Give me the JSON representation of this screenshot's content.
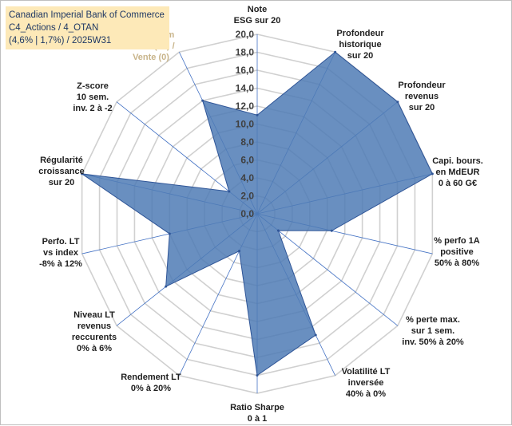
{
  "title_box": {
    "line1": "Canadian Imperial Bank of Commerce",
    "line2": "C4_Actions / 4_OTAN",
    "line3": "(4,6% | 1,7%) / 2025W31"
  },
  "colors": {
    "fill": "#4f7bb5",
    "stroke": "#2f5597",
    "grid": "#d0d0d0",
    "spoke": "#4472c4",
    "title_bg": "#fde9b8",
    "highlight_label": "#c8b48a"
  },
  "chart_data": {
    "type": "radar",
    "title": "",
    "rlim": [
      0,
      20
    ],
    "tick_step": 2,
    "tick_labels": [
      "0,0",
      "2,0",
      "4,0",
      "6,0",
      "8,0",
      "10,0",
      "12,0",
      "14,0",
      "16,0",
      "18,0",
      "20,0"
    ],
    "grid": true,
    "categories": [
      {
        "label": [
          "Note",
          "ESG sur 20"
        ],
        "value": 11
      },
      {
        "label": [
          "Profondeur",
          "historique",
          "sur 20"
        ],
        "value": 20
      },
      {
        "label": [
          "Profondeur",
          "revenus",
          "sur 20"
        ],
        "value": 20
      },
      {
        "label": [
          "Capi. bours.",
          "en MdEUR",
          "0 à 60 G€"
        ],
        "value": 20
      },
      {
        "label": [
          "% perfo 1A",
          "positive",
          "50% à 80%"
        ],
        "value": 8.5
      },
      {
        "label": [
          "% perte max.",
          "sur 1 sem.",
          "inv. 50% à 20%"
        ],
        "value": 3
      },
      {
        "label": [
          "Volatilité LT",
          "inversée",
          "40% à 0%"
        ],
        "value": 15
      },
      {
        "label": [
          "Ratio Sharpe",
          "0 à 1"
        ],
        "value": 18
      },
      {
        "label": [
          "Rendement LT",
          "0% à 20%"
        ],
        "value": 4.6
      },
      {
        "label": [
          "Niveau LT",
          "revenus",
          "reccurents",
          "0% à 6%"
        ],
        "value": 13
      },
      {
        "label": [
          "Perfo. LT",
          "vs index",
          "-8% à 12%"
        ],
        "value": 10
      },
      {
        "label": [
          "Régularité",
          "croissance",
          "sur 20"
        ],
        "value": 20
      },
      {
        "label": [
          "Z-score",
          "10 sem.",
          "inv. 2 à -2"
        ],
        "value": 4
      },
      {
        "label": [
          "Momentum",
          "Achat (20) /",
          "Vente (0)"
        ],
        "value": 14
      }
    ]
  }
}
